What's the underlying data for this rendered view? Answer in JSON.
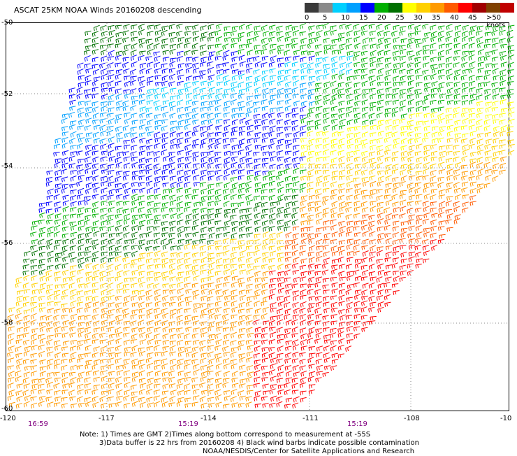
{
  "title": "ASCAT 25KM NOAA Winds 20160208 descending",
  "legend": {
    "labels": [
      "0",
      "5",
      "10",
      "15",
      "20",
      "25",
      "30",
      "35",
      "40",
      "45",
      ">50 knots"
    ],
    "colors": [
      "#3a3a3a",
      "#8a8a8a",
      "#00d0ff",
      "#00a0ff",
      "#0000ff",
      "#00b000",
      "#007000",
      "#ffff00",
      "#ffd000",
      "#ff9a00",
      "#ff5a00",
      "#ff0000",
      "#a00000",
      "#804000",
      "#c00000",
      "#ff00ff",
      "#a000a0",
      "#600060"
    ]
  },
  "latitude_labels": [
    "-50",
    "-52",
    "-54",
    "-56",
    "-58",
    "-60"
  ],
  "longitude_labels": [
    "-120",
    "-117",
    "-114",
    "-111",
    "-108",
    "-10"
  ],
  "times": [
    "16:59",
    "15:19",
    "15:19"
  ],
  "notes": {
    "line1": "Note: 1) Times are GMT 2)Times along bottom correspond to measurement at -55S",
    "line2": "3)Data buffer is 22 hrs from 20160208 4) Black wind barbs indicate possible contamination",
    "line3": "NOAA/NESDIS/Center for Satellite Applications and Research"
  },
  "wind_field": {
    "description_bands": [
      {
        "region": "north",
        "dominant_colors": [
          "#00b000",
          "#007000",
          "#0000ff"
        ]
      },
      {
        "region": "center",
        "dominant_colors": [
          "#00d0ff",
          "#0000ff",
          "#00b000"
        ]
      },
      {
        "region": "south",
        "dominant_colors": [
          "#ffd000",
          "#ff9a00",
          "#ff0000"
        ]
      }
    ]
  }
}
